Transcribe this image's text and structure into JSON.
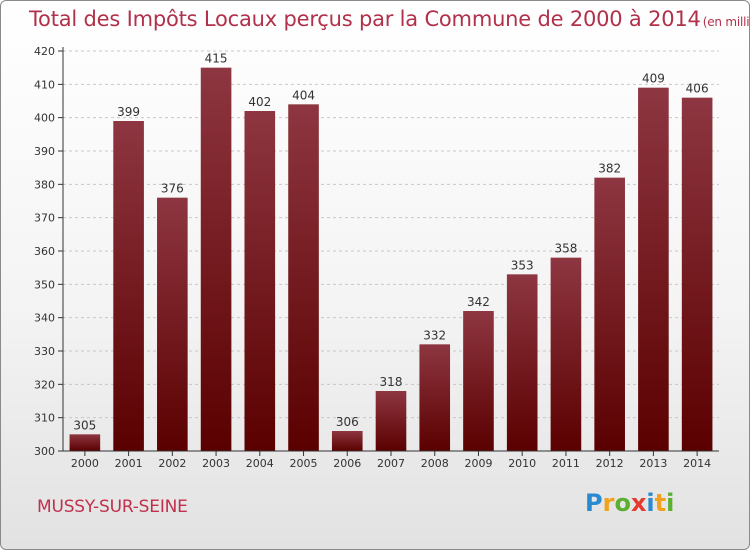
{
  "title": "Total des Impôts Locaux perçus par la Commune de 2000 à 2014",
  "title_unit": "(en milliers d'€)",
  "commune": "MUSSY-SUR-SEINE",
  "logo": {
    "text": "Proxiti",
    "letters": [
      {
        "ch": "P",
        "color": "#2a8ad0"
      },
      {
        "ch": "r",
        "color": "#f0a21c"
      },
      {
        "ch": "o",
        "color": "#5bb030"
      },
      {
        "ch": "x",
        "color": "#e63a2e"
      },
      {
        "ch": "i",
        "color": "#2a8ad0"
      },
      {
        "ch": "t",
        "color": "#f0a21c"
      },
      {
        "ch": "i",
        "color": "#5bb030"
      }
    ]
  },
  "colors": {
    "bar_top": "#8e3641",
    "bar_bottom": "#5a0000",
    "title": "#b1314b"
  },
  "chart_data": {
    "type": "bar",
    "categories": [
      "2000",
      "2001",
      "2002",
      "2003",
      "2004",
      "2005",
      "2006",
      "2007",
      "2008",
      "2009",
      "2010",
      "2011",
      "2012",
      "2013",
      "2014"
    ],
    "values": [
      305,
      399,
      376,
      415,
      402,
      404,
      306,
      318,
      332,
      342,
      353,
      358,
      382,
      409,
      406
    ],
    "ylim": [
      300,
      420
    ],
    "yticks": [
      300,
      310,
      320,
      330,
      340,
      350,
      360,
      370,
      380,
      390,
      400,
      410,
      420
    ],
    "grid": true,
    "data_labels": true
  }
}
